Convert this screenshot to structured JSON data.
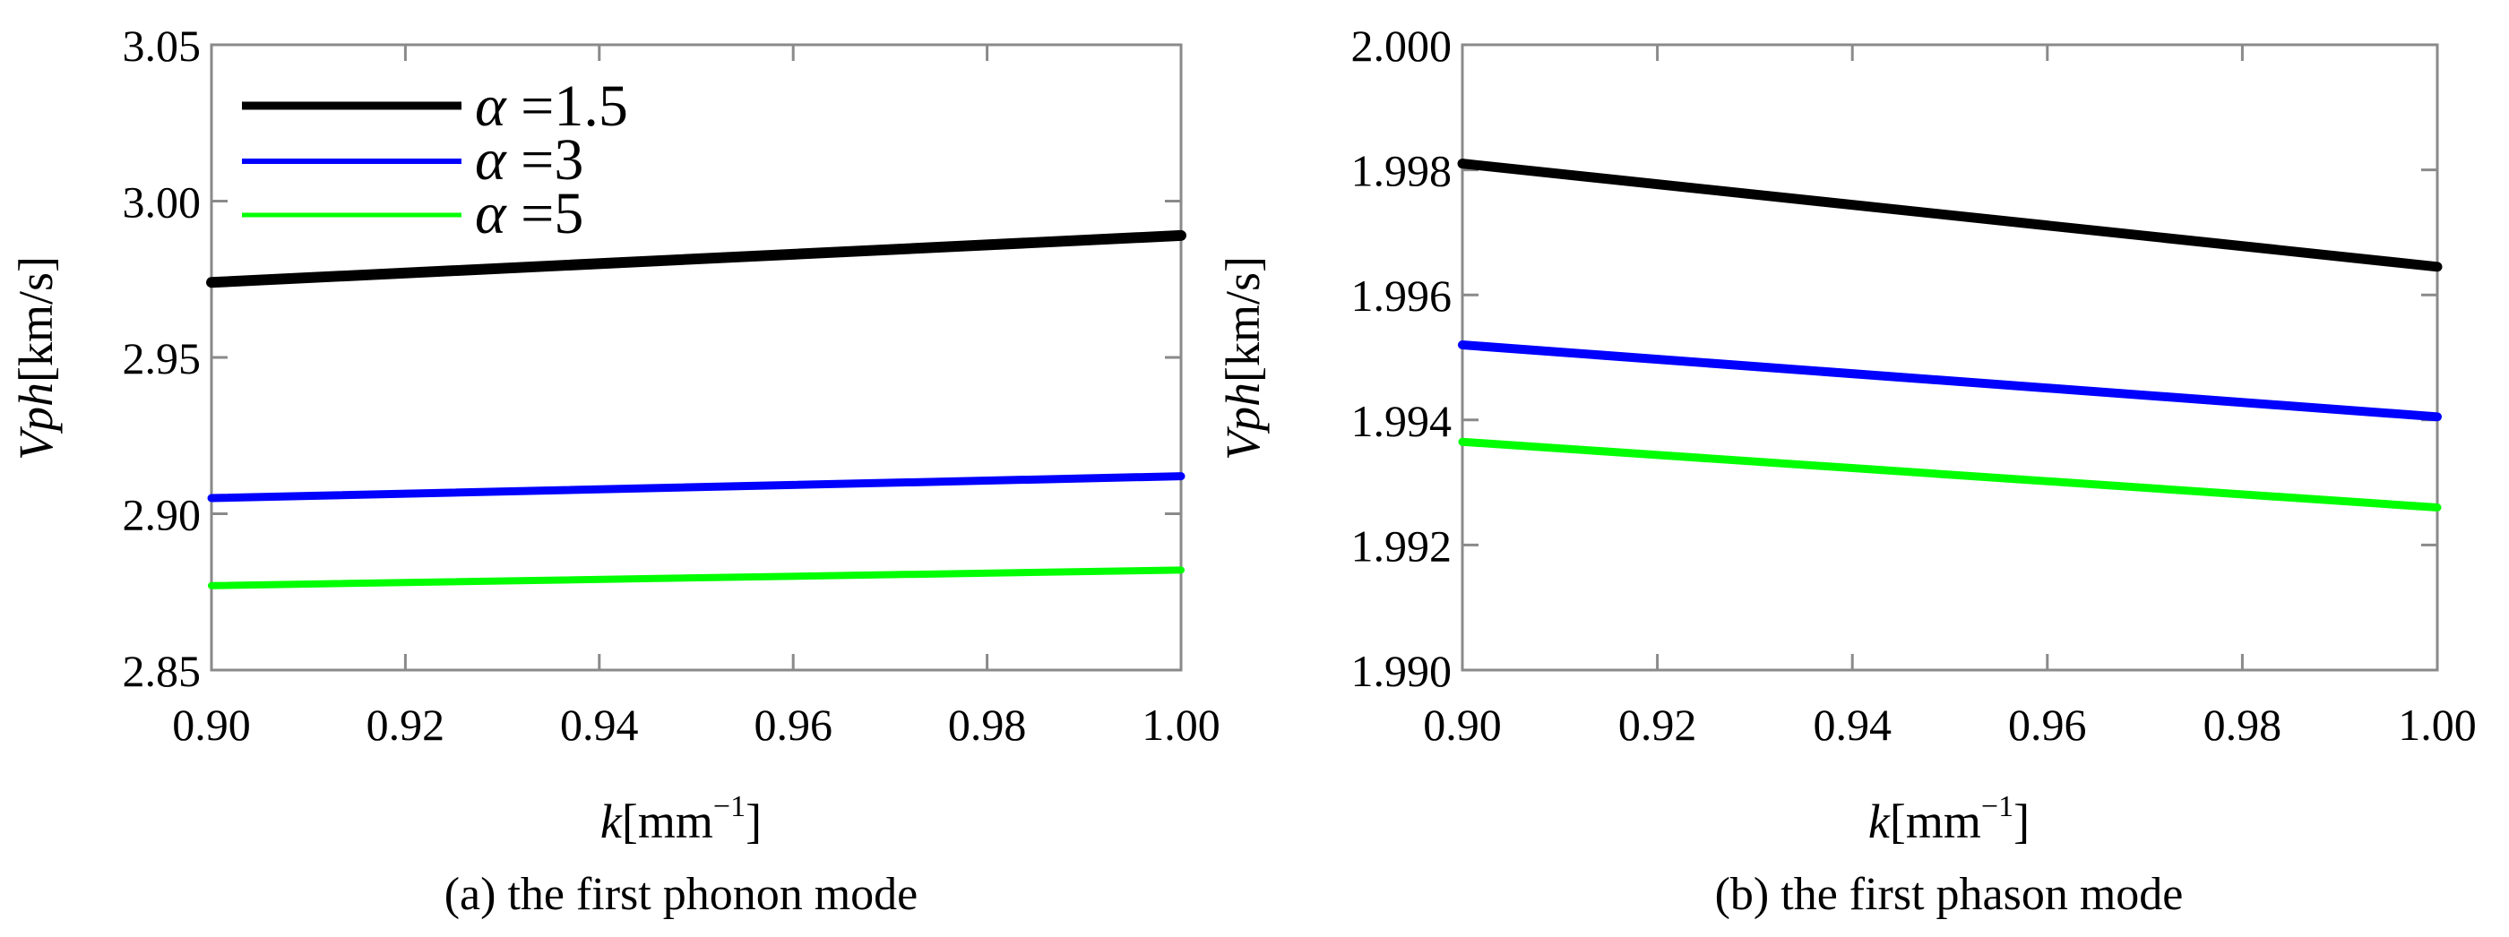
{
  "chart_data": [
    {
      "type": "line",
      "caption": "(a) the first phonon mode",
      "xlabel_var": "k",
      "xlabel_unit": "[mm",
      "xlabel_sup": "−1",
      "xlabel_close": "]",
      "ylabel_var": "Vph",
      "ylabel_unit": "[km/s]",
      "xlim": [
        0.9,
        1.0
      ],
      "ylim": [
        2.85,
        3.05
      ],
      "xticks": [
        0.9,
        0.92,
        0.94,
        0.96,
        0.98,
        1.0
      ],
      "xtick_labels": [
        "0.90",
        "0.92",
        "0.94",
        "0.96",
        "0.98",
        "1.00"
      ],
      "yticks": [
        2.85,
        2.9,
        2.95,
        3.0,
        3.05
      ],
      "ytick_labels": [
        "2.85",
        "2.90",
        "2.95",
        "3.00",
        "3.05"
      ],
      "legend_position": "top-left",
      "series": [
        {
          "name": "α =1.5",
          "greek": "α",
          "value_text": " =1.5",
          "color": "#000000",
          "x": [
            0.9,
            1.0
          ],
          "y": [
            2.974,
            2.989
          ]
        },
        {
          "name": "α =3",
          "greek": "α",
          "value_text": " =3",
          "color": "#0000ff",
          "x": [
            0.9,
            1.0
          ],
          "y": [
            2.905,
            2.912
          ]
        },
        {
          "name": "α =5",
          "greek": "α",
          "value_text": " =5",
          "color": "#00ff00",
          "x": [
            0.9,
            1.0
          ],
          "y": [
            2.877,
            2.882
          ]
        }
      ]
    },
    {
      "type": "line",
      "caption": "(b) the first phason mode",
      "xlabel_var": "k",
      "xlabel_unit": "[mm",
      "xlabel_sup": "−1",
      "xlabel_close": "]",
      "ylabel_var": "Vph",
      "ylabel_unit": "[km/s]",
      "xlim": [
        0.9,
        1.0
      ],
      "ylim": [
        1.99,
        2.0
      ],
      "xticks": [
        0.9,
        0.92,
        0.94,
        0.96,
        0.98,
        1.0
      ],
      "xtick_labels": [
        "0.90",
        "0.92",
        "0.94",
        "0.96",
        "0.98",
        "1.00"
      ],
      "yticks": [
        1.99,
        1.992,
        1.994,
        1.996,
        1.998,
        2.0
      ],
      "ytick_labels": [
        "1.990",
        "1.992",
        "1.994",
        "1.996",
        "1.998",
        "2.000"
      ],
      "series": [
        {
          "name": "α =1.5",
          "color": "#000000",
          "x": [
            0.9,
            1.0
          ],
          "y": [
            1.9981,
            1.99645
          ]
        },
        {
          "name": "α =3",
          "color": "#0000ff",
          "x": [
            0.9,
            1.0
          ],
          "y": [
            1.9952,
            1.99405
          ]
        },
        {
          "name": "α =5",
          "color": "#00ff00",
          "x": [
            0.9,
            1.0
          ],
          "y": [
            1.99365,
            1.9926
          ]
        }
      ]
    }
  ]
}
